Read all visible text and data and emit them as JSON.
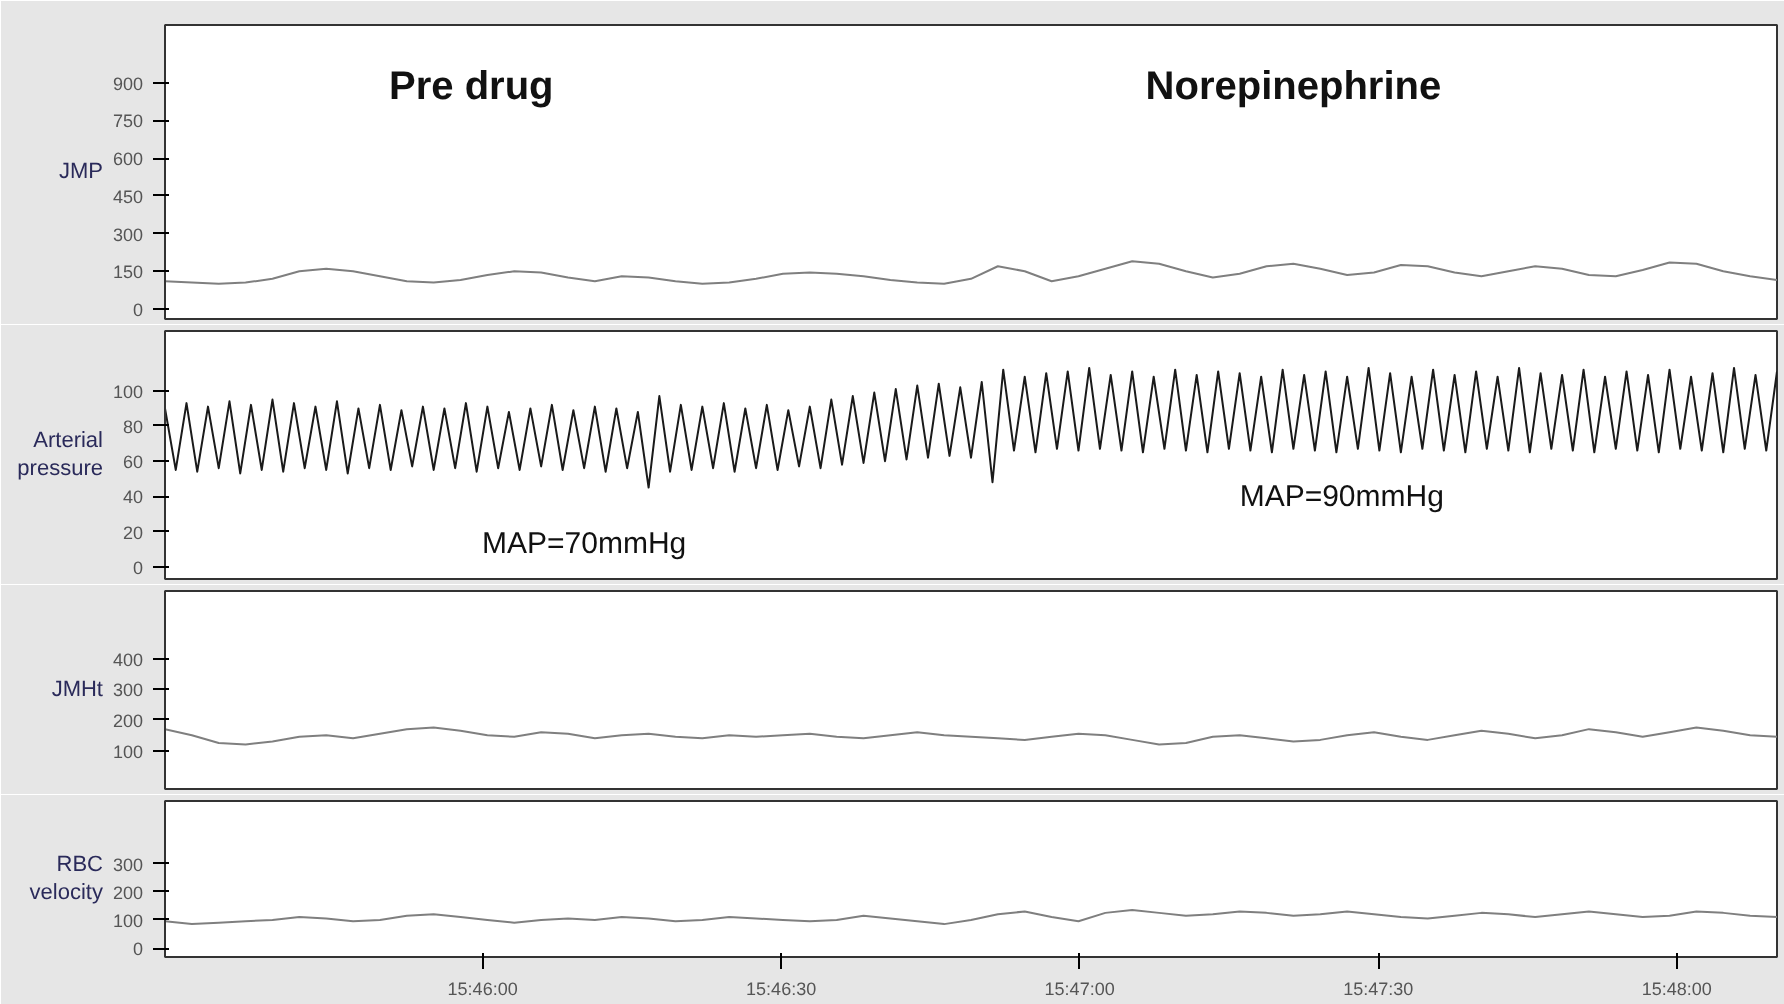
{
  "chart_data": [
    {
      "type": "line",
      "ylabel": "JMP",
      "xlim": [
        15.7578,
        15.8028
      ],
      "ylim": [
        -40,
        1130
      ],
      "tick_labels": "y",
      "yticks": [
        0,
        150,
        300,
        450,
        600,
        750,
        900
      ],
      "annotations": [
        "Pre drug",
        "Norepinephrine"
      ],
      "x": [
        15.7578,
        15.75855,
        15.7593,
        15.76005,
        15.7608,
        15.76155,
        15.7623,
        15.76305,
        15.7638,
        15.76455,
        15.7653,
        15.76605,
        15.7668,
        15.76755,
        15.7683,
        15.76905,
        15.7698,
        15.77055,
        15.7713,
        15.77205,
        15.7728,
        15.77355,
        15.7743,
        15.77505,
        15.7758,
        15.77655,
        15.7773,
        15.77805,
        15.7788,
        15.77955,
        15.7803,
        15.78105,
        15.7818,
        15.78255,
        15.7833,
        15.78405,
        15.7848,
        15.78555,
        15.7863,
        15.78705,
        15.7878,
        15.78855,
        15.7893,
        15.79005,
        15.7908,
        15.79155,
        15.7923,
        15.79305,
        15.7938,
        15.79455,
        15.7953,
        15.79605,
        15.7968,
        15.79755,
        15.7983,
        15.79905,
        15.7998,
        15.80055,
        15.8013,
        15.80205,
        15.8028
      ],
      "series": [
        {
          "color": "#7f7f7f",
          "values": [
            110,
            105,
            100,
            105,
            120,
            150,
            160,
            150,
            130,
            110,
            105,
            115,
            135,
            150,
            145,
            125,
            110,
            130,
            125,
            110,
            100,
            105,
            120,
            140,
            145,
            140,
            130,
            115,
            105,
            100,
            120,
            170,
            150,
            110,
            130,
            160,
            190,
            180,
            150,
            125,
            140,
            170,
            180,
            160,
            135,
            145,
            175,
            170,
            145,
            130,
            150,
            170,
            160,
            135,
            130,
            155,
            185,
            180,
            150,
            130,
            115
          ]
        }
      ]
    },
    {
      "type": "line",
      "ylabel": "Arterial pressure",
      "xlim": [
        15.7578,
        15.8028
      ],
      "ylim": [
        -7,
        134
      ],
      "tick_labels": "y",
      "yticks": [
        0,
        20,
        40,
        60,
        80,
        100
      ],
      "annotations": [
        "MAP=70mmHg",
        "MAP=90mmHg"
      ],
      "x": [
        15.7578,
        15.7581,
        15.7584,
        15.7587,
        15.759,
        15.7593,
        15.7596,
        15.7599,
        15.7602,
        15.7605,
        15.7608,
        15.7611,
        15.7614,
        15.7617,
        15.762,
        15.7623,
        15.7626,
        15.7629,
        15.7632,
        15.7635,
        15.7638,
        15.7641,
        15.7644,
        15.7647,
        15.765,
        15.7653,
        15.7656,
        15.7659,
        15.7662,
        15.7665,
        15.7668,
        15.7671,
        15.7674,
        15.7677,
        15.768,
        15.7683,
        15.7686,
        15.7689,
        15.7692,
        15.7695,
        15.7698,
        15.7701,
        15.7704,
        15.7707,
        15.771,
        15.7713,
        15.7716,
        15.7719,
        15.7722,
        15.7725,
        15.7728,
        15.7731,
        15.7734,
        15.7737,
        15.774,
        15.7743,
        15.7746,
        15.7749,
        15.7752,
        15.7755,
        15.7758,
        15.7761,
        15.7764,
        15.7767,
        15.777,
        15.7773,
        15.7776,
        15.7779,
        15.7782,
        15.7785,
        15.7788,
        15.7791,
        15.7794,
        15.7797,
        15.78,
        15.7803,
        15.7806,
        15.7809,
        15.7812,
        15.7815,
        15.7818,
        15.7821,
        15.7824,
        15.7827,
        15.783,
        15.7833,
        15.7836,
        15.7839,
        15.7842,
        15.7845,
        15.7848,
        15.7851,
        15.7854,
        15.7857,
        15.786,
        15.7863,
        15.7866,
        15.7869,
        15.7872,
        15.7875,
        15.7878,
        15.7881,
        15.7884,
        15.7887,
        15.789,
        15.7893,
        15.7896,
        15.7899,
        15.7902,
        15.7905,
        15.7908,
        15.7911,
        15.7914,
        15.7917,
        15.792,
        15.7923,
        15.7926,
        15.7929,
        15.7932,
        15.7935,
        15.7938,
        15.7941,
        15.7944,
        15.7947,
        15.795,
        15.7953,
        15.7956,
        15.7959,
        15.7962,
        15.7965,
        15.7968,
        15.7971,
        15.7974,
        15.7977,
        15.798,
        15.7983,
        15.7986,
        15.7989,
        15.7992,
        15.7995,
        15.7998,
        15.8001,
        15.8004,
        15.8007,
        15.801,
        15.8013,
        15.8016,
        15.8019,
        15.8022,
        15.8025,
        15.8028
      ],
      "series": [
        {
          "color": "#1a1a1a",
          "values": [
            90,
            55,
            93,
            54,
            91,
            56,
            94,
            53,
            92,
            55,
            95,
            54,
            93,
            56,
            91,
            55,
            94,
            53,
            90,
            56,
            92,
            55,
            89,
            57,
            91,
            55,
            90,
            56,
            93,
            54,
            91,
            56,
            88,
            55,
            90,
            57,
            92,
            55,
            89,
            56,
            91,
            54,
            90,
            56,
            88,
            45,
            97,
            54,
            92,
            55,
            91,
            56,
            93,
            54,
            90,
            56,
            92,
            55,
            89,
            57,
            91,
            56,
            95,
            58,
            97,
            59,
            99,
            60,
            101,
            61,
            103,
            62,
            104,
            63,
            102,
            62,
            105,
            48,
            112,
            66,
            108,
            65,
            110,
            67,
            111,
            66,
            113,
            67,
            109,
            66,
            111,
            65,
            108,
            67,
            112,
            66,
            109,
            65,
            111,
            67,
            110,
            66,
            108,
            65,
            112,
            67,
            109,
            66,
            111,
            65,
            108,
            67,
            113,
            66,
            110,
            65,
            108,
            67,
            112,
            66,
            109,
            65,
            111,
            67,
            108,
            66,
            113,
            65,
            110,
            67,
            109,
            66,
            112,
            65,
            108,
            67,
            111,
            66,
            109,
            65,
            112,
            67,
            108,
            66,
            110,
            65,
            113,
            67,
            109,
            66,
            111
          ]
        }
      ]
    },
    {
      "type": "line",
      "ylabel": "JMHt",
      "xlim": [
        15.7578,
        15.8028
      ],
      "ylim": [
        -25,
        620
      ],
      "tick_labels": "y",
      "yticks": [
        100,
        200,
        300,
        400
      ],
      "x": [
        15.7578,
        15.75855,
        15.7593,
        15.76005,
        15.7608,
        15.76155,
        15.7623,
        15.76305,
        15.7638,
        15.76455,
        15.7653,
        15.76605,
        15.7668,
        15.76755,
        15.7683,
        15.76905,
        15.7698,
        15.77055,
        15.7713,
        15.77205,
        15.7728,
        15.77355,
        15.7743,
        15.77505,
        15.7758,
        15.77655,
        15.7773,
        15.77805,
        15.7788,
        15.77955,
        15.7803,
        15.78105,
        15.7818,
        15.78255,
        15.7833,
        15.78405,
        15.7848,
        15.78555,
        15.7863,
        15.78705,
        15.7878,
        15.78855,
        15.7893,
        15.79005,
        15.7908,
        15.79155,
        15.7923,
        15.79305,
        15.7938,
        15.79455,
        15.7953,
        15.79605,
        15.7968,
        15.79755,
        15.7983,
        15.79905,
        15.7998,
        15.80055,
        15.8013,
        15.80205,
        15.8028
      ],
      "series": [
        {
          "color": "#7f7f7f",
          "values": [
            170,
            150,
            125,
            120,
            130,
            145,
            150,
            140,
            155,
            170,
            175,
            165,
            150,
            145,
            160,
            155,
            140,
            150,
            155,
            145,
            140,
            150,
            145,
            150,
            155,
            145,
            140,
            150,
            160,
            150,
            145,
            140,
            135,
            145,
            155,
            150,
            135,
            120,
            125,
            145,
            150,
            140,
            130,
            135,
            150,
            160,
            145,
            135,
            150,
            165,
            155,
            140,
            150,
            170,
            160,
            145,
            160,
            175,
            165,
            150,
            145
          ]
        }
      ]
    },
    {
      "type": "line",
      "ylabel": "RBC velocity",
      "xlim": [
        15.7578,
        15.8028
      ],
      "ylim": [
        -32,
        523
      ],
      "xticks": [
        {
          "value": 15.766667,
          "label": "15:46:00"
        },
        {
          "value": 15.775,
          "label": "15:46:30"
        },
        {
          "value": 15.783333,
          "label": "15:47:00"
        },
        {
          "value": 15.791667,
          "label": "15:47:30"
        },
        {
          "value": 15.8,
          "label": "15:48:00"
        }
      ],
      "yticks": [
        0,
        100,
        200,
        300
      ],
      "x": [
        15.7578,
        15.75855,
        15.7593,
        15.76005,
        15.7608,
        15.76155,
        15.7623,
        15.76305,
        15.7638,
        15.76455,
        15.7653,
        15.76605,
        15.7668,
        15.76755,
        15.7683,
        15.76905,
        15.7698,
        15.77055,
        15.7713,
        15.77205,
        15.7728,
        15.77355,
        15.7743,
        15.77505,
        15.7758,
        15.77655,
        15.7773,
        15.77805,
        15.7788,
        15.77955,
        15.7803,
        15.78105,
        15.7818,
        15.78255,
        15.7833,
        15.78405,
        15.7848,
        15.78555,
        15.7863,
        15.78705,
        15.7878,
        15.78855,
        15.7893,
        15.79005,
        15.7908,
        15.79155,
        15.7923,
        15.79305,
        15.7938,
        15.79455,
        15.7953,
        15.79605,
        15.7968,
        15.79755,
        15.7983,
        15.79905,
        15.7998,
        15.80055,
        15.8013,
        15.80205,
        15.8028
      ],
      "series": [
        {
          "color": "#7f7f7f",
          "values": [
            95,
            85,
            90,
            95,
            100,
            110,
            105,
            95,
            100,
            115,
            120,
            110,
            100,
            90,
            100,
            105,
            100,
            110,
            105,
            95,
            100,
            110,
            105,
            100,
            95,
            100,
            115,
            105,
            95,
            85,
            100,
            120,
            130,
            110,
            95,
            125,
            135,
            125,
            115,
            120,
            130,
            125,
            115,
            120,
            130,
            120,
            110,
            105,
            115,
            125,
            120,
            110,
            120,
            130,
            120,
            110,
            115,
            130,
            125,
            115,
            110
          ]
        }
      ]
    }
  ]
}
